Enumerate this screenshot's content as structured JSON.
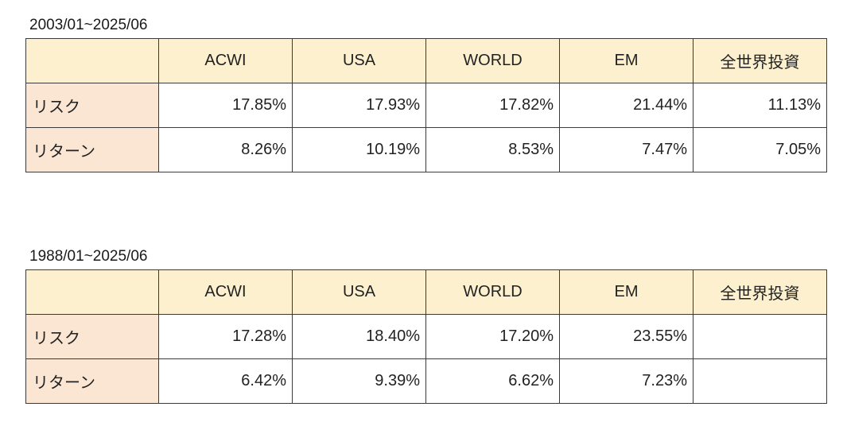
{
  "tables": [
    {
      "period": "2003/01~2025/06",
      "columns": [
        "ACWI",
        "USA",
        "WORLD",
        "EM",
        "全世界投資"
      ],
      "rows": [
        {
          "label": "リスク",
          "values": [
            "17.85%",
            "17.93%",
            "17.82%",
            "21.44%",
            "11.13%"
          ]
        },
        {
          "label": "リターン",
          "values": [
            "8.26%",
            "10.19%",
            "8.53%",
            "7.47%",
            "7.05%"
          ]
        }
      ]
    },
    {
      "period": "1988/01~2025/06",
      "columns": [
        "ACWI",
        "USA",
        "WORLD",
        "EM",
        "全世界投資"
      ],
      "rows": [
        {
          "label": "リスク",
          "values": [
            "17.28%",
            "18.40%",
            "17.20%",
            "23.55%",
            ""
          ]
        },
        {
          "label": "リターン",
          "values": [
            "6.42%",
            "9.39%",
            "6.62%",
            "7.23%",
            ""
          ]
        }
      ]
    }
  ]
}
